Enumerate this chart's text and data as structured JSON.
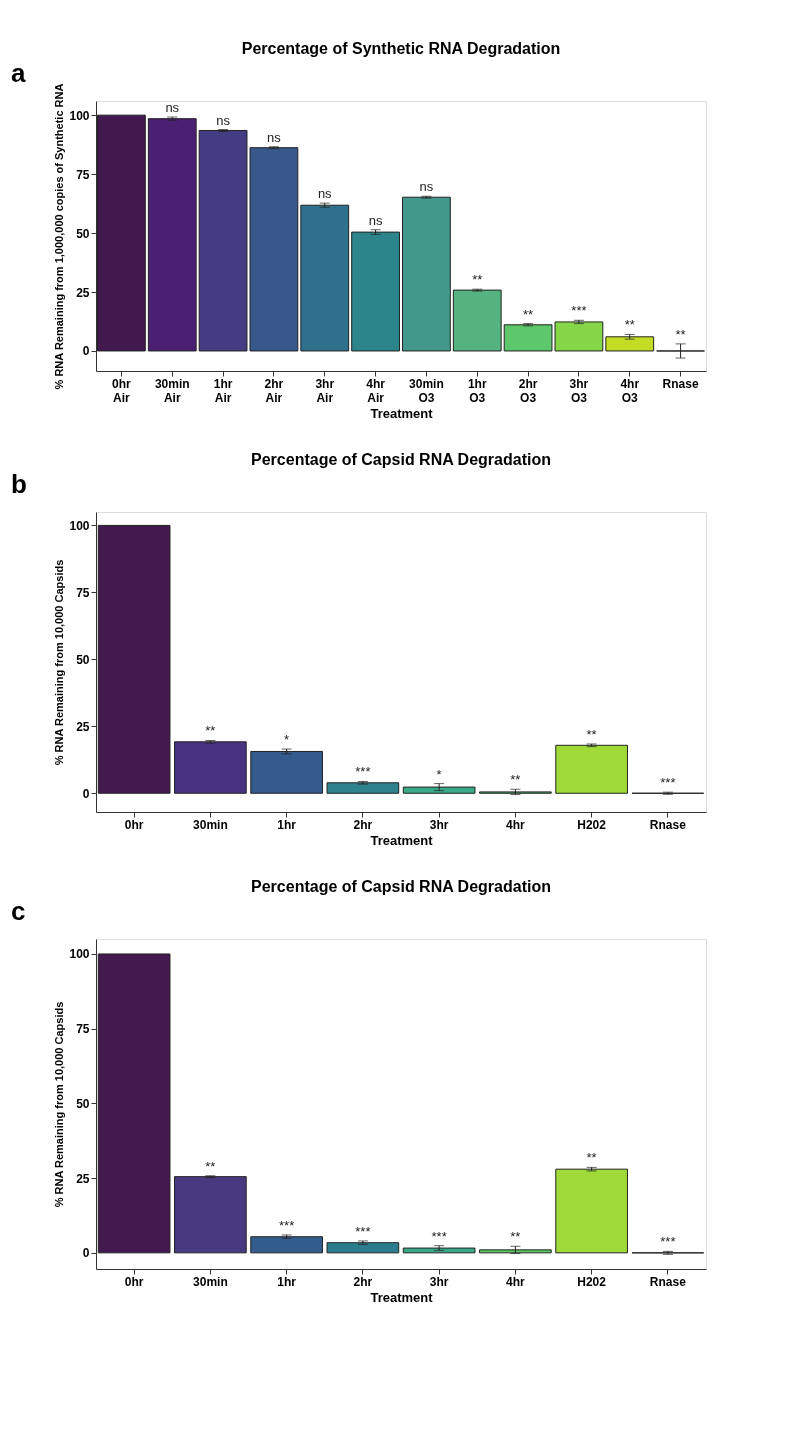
{
  "chart_data": [
    {
      "type": "bar",
      "title": "Percentage of Synthetic RNA Degradation",
      "xlabel": "Treatment",
      "ylabel": "% RNA Remaining from 1,000,000 copies of Synthetic RNA",
      "categories": [
        "0hr Air",
        "30min Air",
        "1hr Air",
        "2hr Air",
        "3hr Air",
        "4hr Air",
        "30min O3",
        "1hr O3",
        "2hr O3",
        "3hr O3",
        "4hr O3",
        "Rnase"
      ],
      "values": [
        100,
        98.5,
        93.5,
        86.2,
        61.8,
        50.4,
        65.2,
        25.8,
        11.1,
        12.3,
        6.0,
        0
      ],
      "errors": [
        null,
        0.7,
        0.4,
        0.4,
        0.9,
        1.0,
        0.4,
        0.4,
        0.5,
        0.7,
        1.0,
        3.0
      ],
      "colors": [
        "#42194f",
        "#4b2073",
        "#443c82",
        "#38578a",
        "#2f708c",
        "#2d858c",
        "#42998b",
        "#55b380",
        "#5cc86b",
        "#86d649",
        "#c2dd24",
        "#222222"
      ],
      "ylim": [
        -8.5,
        106
      ],
      "yticks": [
        0,
        25,
        50,
        75,
        100
      ],
      "grid": false,
      "legend": false,
      "annotations": [
        "a",
        {
          "text": "ns",
          "x": "30min Air",
          "y": 99.2
        },
        {
          "text": "ns",
          "x": "1hr Air",
          "y": 93.9
        },
        {
          "text": "ns",
          "x": "2hr Air",
          "y": 86.6
        },
        {
          "text": "ns",
          "x": "3hr Air",
          "y": 62.7
        },
        {
          "text": "ns",
          "x": "4hr Air",
          "y": 51.4
        },
        {
          "text": "ns",
          "x": "30min O3",
          "y": 65.6
        },
        {
          "text": "**",
          "x": "1hr O3",
          "y": 26.2
        },
        {
          "text": "**",
          "x": "2hr O3",
          "y": 11.6
        },
        {
          "text": "***",
          "x": "3hr O3",
          "y": 13.0
        },
        {
          "text": "**",
          "x": "4hr O3",
          "y": 7.0
        },
        {
          "text": "**",
          "x": "Rnase",
          "y": 3.0
        }
      ]
    },
    {
      "type": "bar",
      "title": "Percentage of Capsid RNA Degradation",
      "xlabel": "Treatment",
      "ylabel": "% RNA Remaining from 10,000 Capsids",
      "categories": [
        "0hr",
        "30min",
        "1hr",
        "2hr",
        "3hr",
        "4hr",
        "H202",
        "Rnase"
      ],
      "values": [
        100,
        19.2,
        15.6,
        3.9,
        2.3,
        0.5,
        17.9,
        0
      ],
      "errors": [
        null,
        0.5,
        0.9,
        0.5,
        1.3,
        1.0,
        0.5,
        0.4
      ],
      "colors": [
        "#421a4f",
        "#473381",
        "#355a8c",
        "#2e838e",
        "#3aa987",
        "#46bc6f",
        "#a0da39",
        "#222222"
      ],
      "ylim": [
        -7,
        105
      ],
      "yticks": [
        0,
        25,
        50,
        75,
        100
      ],
      "grid": false,
      "legend": false,
      "annotations": [
        "b",
        {
          "text": "**",
          "x": "30min",
          "y": 19.7
        },
        {
          "text": "*",
          "x": "1hr",
          "y": 16.5
        },
        {
          "text": "***",
          "x": "2hr",
          "y": 4.4
        },
        {
          "text": "*",
          "x": "3hr",
          "y": 3.6
        },
        {
          "text": "**",
          "x": "4hr",
          "y": 1.5
        },
        {
          "text": "**",
          "x": "H202",
          "y": 18.4
        },
        {
          "text": "***",
          "x": "Rnase",
          "y": 0.4
        }
      ]
    },
    {
      "type": "bar",
      "title": "Percentage of Capsid RNA Degradation",
      "xlabel": "Treatment",
      "ylabel": "% RNA Remaining from 10,000 Capsids",
      "categories": [
        "0hr",
        "30min",
        "1hr",
        "2hr",
        "3hr",
        "4hr",
        "H202",
        "Rnase"
      ],
      "values": [
        100,
        25.5,
        5.4,
        3.4,
        1.6,
        1.0,
        28.0,
        0
      ],
      "errors": [
        null,
        0.3,
        0.6,
        0.6,
        0.8,
        1.2,
        0.6,
        0.5
      ],
      "colors": [
        "#421a4f",
        "#473a80",
        "#335d8d",
        "#2b7d8e",
        "#3aa987",
        "#5ec962",
        "#a0da39",
        "#222222"
      ],
      "ylim": [
        -5.4,
        105
      ],
      "yticks": [
        0,
        25,
        50,
        75,
        100
      ],
      "grid": false,
      "legend": false,
      "annotations": [
        "c",
        {
          "text": "**",
          "x": "30min",
          "y": 25.8
        },
        {
          "text": "***",
          "x": "1hr",
          "y": 6.0
        },
        {
          "text": "***",
          "x": "2hr",
          "y": 4.0
        },
        {
          "text": "***",
          "x": "3hr",
          "y": 2.4
        },
        {
          "text": "**",
          "x": "4hr",
          "y": 2.2
        },
        {
          "text": "**",
          "x": "H202",
          "y": 28.6
        },
        {
          "text": "***",
          "x": "Rnase",
          "y": 0.5
        }
      ]
    }
  ]
}
